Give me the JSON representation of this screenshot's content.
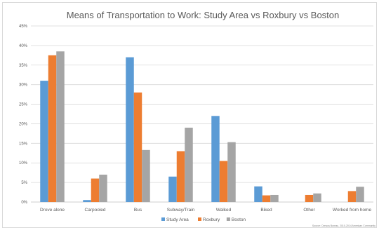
{
  "chart_data": {
    "type": "bar",
    "title": "Means of Transportation to Work: Study Area vs Roxbury vs Boston",
    "categories": [
      "Drove alone",
      "Carpooled",
      "Bus",
      "Subway/Train",
      "Walked",
      "Biked",
      "Other",
      "Worked from home"
    ],
    "series": [
      {
        "name": "Study Area",
        "color": "#5b9bd5",
        "values": [
          31,
          0.5,
          37,
          6.5,
          22,
          4,
          0,
          0
        ]
      },
      {
        "name": "Roxbury",
        "color": "#ed7d31",
        "values": [
          37.5,
          6,
          28,
          13,
          10.5,
          1.7,
          1.8,
          2.8
        ]
      },
      {
        "name": "Boston",
        "color": "#a5a5a5",
        "values": [
          38.5,
          7,
          13.3,
          19,
          15.3,
          1.8,
          2.2,
          3.9
        ]
      }
    ],
    "ylim": [
      0,
      45
    ],
    "yticks": [
      "0%",
      "5%",
      "10%",
      "15%",
      "20%",
      "25%",
      "30%",
      "35%",
      "40%",
      "45%"
    ],
    "ytick_values": [
      0,
      5,
      10,
      15,
      20,
      25,
      30,
      35,
      40,
      45
    ],
    "grid": true,
    "legend_position": "bottom",
    "xlabel": "",
    "ylabel": "",
    "source": "Source: Census Bureau, 2010-2014 American Community"
  }
}
